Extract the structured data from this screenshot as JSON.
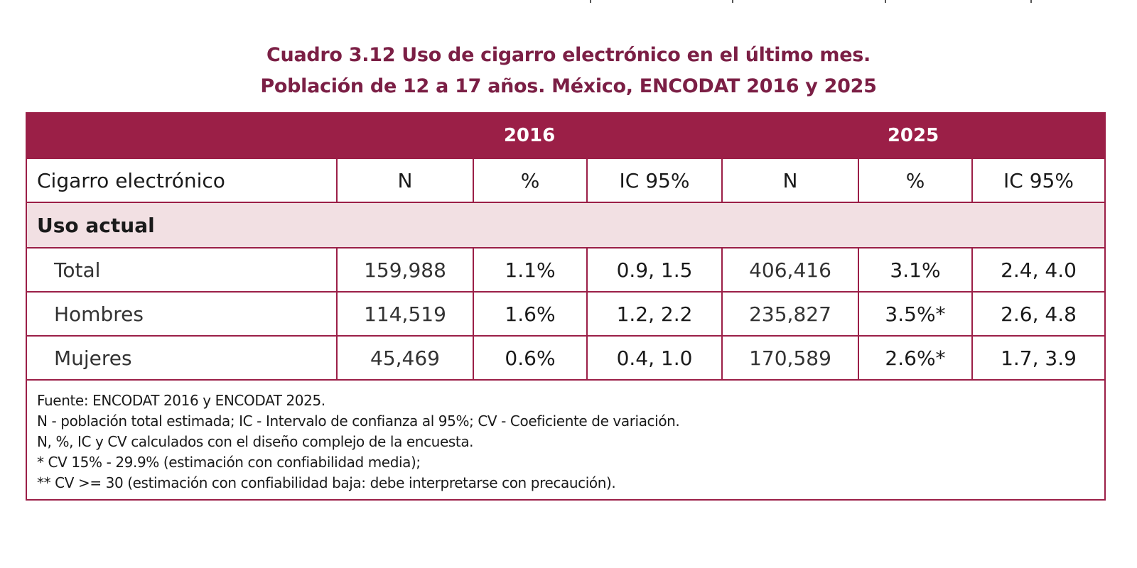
{
  "title": {
    "line1": "Cuadro 3.12 Uso de cigarro electrónico en el último mes.",
    "line2": "Población de 12 a 17 años. México, ENCODAT 2016 y 2025"
  },
  "table": {
    "year_headers": [
      "2016",
      "2025"
    ],
    "column_headers": [
      "Cigarro electrónico",
      "N",
      "%",
      "IC 95%",
      "N",
      "%",
      "IC 95%"
    ],
    "section_label": "Uso actual",
    "rows": [
      [
        "Total",
        "159,988",
        "1.1%",
        "0.9, 1.5",
        "406,416",
        "3.1%",
        "2.4, 4.0"
      ],
      [
        "Hombres",
        "114,519",
        "1.6%",
        "1.2, 2.2",
        "235,827",
        "3.5%*",
        "2.6, 4.8"
      ],
      [
        "Mujeres",
        "45,469",
        "0.6%",
        "0.4, 1.0",
        "170,589",
        "2.6%*",
        "1.7, 3.9"
      ]
    ]
  },
  "notes": [
    "Fuente: ENCODAT 2016 y ENCODAT 2025.",
    "N - población total estimada; IC - Intervalo de confianza al 95%; CV - Coeficiente de variación.",
    "N, %, IC y CV calculados con el diseño complejo de la encuesta.",
    "* CV 15% - 29.9% (estimación con confiabilidad media);",
    "** CV >= 30 (estimación con confiabilidad baja: debe interpretarse con precaución)."
  ],
  "colors": {
    "title": "#7b1f45",
    "header_bg": "#9b1f47",
    "section_bg": "#f2e0e3",
    "border": "#9b1f47"
  }
}
